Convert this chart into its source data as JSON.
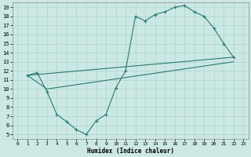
{
  "title": "",
  "xlabel": "Humidex (Indice chaleur)",
  "bg_color": "#cce8e4",
  "line_color": "#2a7a6f",
  "grid_color": "#aad4cc",
  "xlim": [
    -0.5,
    23.5
  ],
  "ylim": [
    4.5,
    19.5
  ],
  "xticks": [
    0,
    1,
    2,
    3,
    4,
    5,
    6,
    7,
    8,
    9,
    10,
    11,
    12,
    13,
    14,
    15,
    16,
    17,
    18,
    19,
    20,
    21,
    22,
    23
  ],
  "yticks": [
    5,
    6,
    7,
    8,
    9,
    10,
    11,
    12,
    13,
    14,
    15,
    16,
    17,
    18,
    19
  ],
  "line1_x": [
    1,
    2,
    3,
    4,
    5,
    6,
    7,
    8,
    9,
    10,
    11,
    12,
    13,
    14,
    15,
    16,
    17,
    18,
    19,
    20,
    21,
    22
  ],
  "line1_y": [
    11.5,
    11.8,
    9.7,
    7.2,
    6.4,
    5.5,
    5.0,
    6.5,
    7.2,
    10.1,
    12.0,
    18.0,
    17.5,
    18.2,
    18.5,
    19.0,
    19.2,
    18.5,
    18.0,
    16.7,
    15.0,
    13.5
  ],
  "line2_x": [
    1,
    3,
    22
  ],
  "line2_y": [
    11.5,
    10.0,
    13.0
  ],
  "line3_x": [
    1,
    22
  ],
  "line3_y": [
    11.5,
    13.5
  ]
}
